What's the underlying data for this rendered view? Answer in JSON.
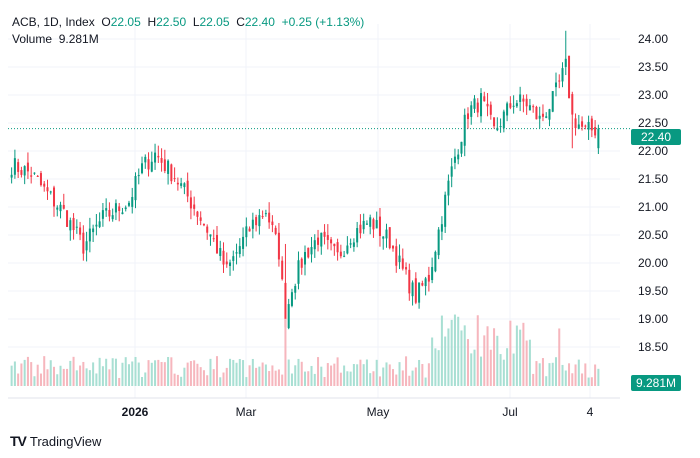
{
  "legend": {
    "symbol": "ACB, 1D, Index",
    "open_label": "O",
    "open": "22.05",
    "high_label": "H",
    "high": "22.50",
    "low_label": "L",
    "low": "22.05",
    "close_label": "C",
    "close": "22.40",
    "change": "+0.25 (+1.13%)",
    "volume_label": "Volume",
    "volume": "9.281M"
  },
  "footer": {
    "logo": "TV",
    "brand": "TradingView"
  },
  "colors": {
    "up": "#089981",
    "down": "#f23645",
    "up_vol": "#a8dfd3",
    "down_vol": "#f6b6bd",
    "grid": "#f0f3fa"
  },
  "chart_data": {
    "type": "candlestick",
    "y_ticks": [
      "24.00",
      "23.50",
      "23.00",
      "22.50",
      "22.00",
      "21.50",
      "21.00",
      "20.50",
      "20.00",
      "19.50",
      "19.00",
      "18.50"
    ],
    "x_ticks": [
      "2026",
      "Mar",
      "May",
      "Jul",
      "4"
    ],
    "ylim": [
      18.3,
      24.2
    ],
    "last_price": "22.40",
    "last_volume": "9.281M",
    "keyframes": [
      [
        0,
        21.75
      ],
      [
        6,
        21.6
      ],
      [
        10,
        21.3
      ],
      [
        16,
        20.9
      ],
      [
        22,
        20.3
      ],
      [
        28,
        20.8
      ],
      [
        36,
        21.1
      ],
      [
        40,
        21.7
      ],
      [
        44,
        21.95
      ],
      [
        50,
        21.55
      ],
      [
        56,
        21.0
      ],
      [
        62,
        20.4
      ],
      [
        66,
        19.85
      ],
      [
        70,
        20.3
      ],
      [
        74,
        20.7
      ],
      [
        78,
        20.95
      ],
      [
        82,
        20.2
      ],
      [
        84,
        19.0
      ],
      [
        86,
        19.6
      ],
      [
        90,
        20.15
      ],
      [
        94,
        20.45
      ],
      [
        100,
        20.1
      ],
      [
        104,
        20.5
      ],
      [
        110,
        20.75
      ],
      [
        116,
        20.4
      ],
      [
        120,
        19.85
      ],
      [
        124,
        19.4
      ],
      [
        128,
        19.75
      ],
      [
        130,
        20.3
      ],
      [
        134,
        21.4
      ],
      [
        136,
        21.9
      ],
      [
        140,
        22.7
      ],
      [
        144,
        22.9
      ],
      [
        148,
        22.35
      ],
      [
        154,
        22.9
      ],
      [
        158,
        22.85
      ],
      [
        162,
        22.55
      ],
      [
        166,
        22.9
      ],
      [
        170,
        23.5
      ],
      [
        172,
        22.6
      ],
      [
        176,
        22.35
      ],
      [
        180,
        22.4
      ]
    ],
    "n_bars": 181
  }
}
